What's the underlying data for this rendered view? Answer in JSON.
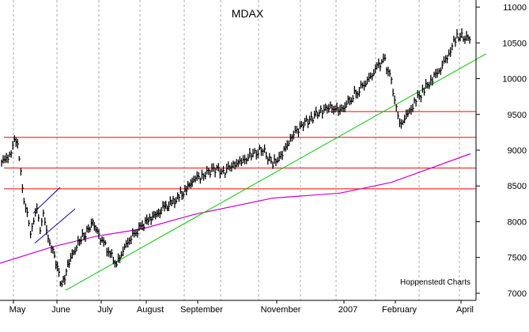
{
  "chart_data": {
    "type": "line",
    "subtype": "ohlc-bars",
    "title": "MDAX",
    "credit": "Hoppenstedt Charts",
    "ylim": [
      6900,
      11100
    ],
    "y_ticks": [
      7000,
      7500,
      8000,
      8500,
      9000,
      9500,
      10000,
      10500,
      11000
    ],
    "x_labels": [
      "May",
      "June",
      "July",
      "August",
      "September",
      "November",
      "2007",
      "February",
      "April"
    ],
    "grid": "vertical dashed",
    "colors": {
      "price": "#000000",
      "moving_average": "#cc00cc",
      "horizontal_levels": "#ff0000",
      "uptrend": "#00cc00",
      "channel": "#0000cc"
    },
    "horizontal_levels": [
      9180,
      8750,
      8460,
      9540
    ],
    "series": [
      {
        "name": "",
        "kind": "price",
        "points": [
          [
            "May",
            8820
          ],
          [
            "",
            8870
          ],
          [
            "",
            8900
          ],
          [
            "",
            9000
          ],
          [
            "",
            9180
          ],
          [
            "",
            9100
          ],
          [
            "",
            8700
          ],
          [
            "",
            8250
          ],
          [
            "",
            8100
          ],
          [
            "",
            7800
          ],
          [
            "",
            8000
          ],
          [
            "",
            8200
          ],
          [
            "",
            7900
          ],
          [
            "",
            8150
          ],
          [
            "",
            7900
          ],
          [
            "",
            7700
          ],
          [
            "June",
            7600
          ],
          [
            "",
            7350
          ],
          [
            "",
            7100
          ],
          [
            "",
            7300
          ],
          [
            "",
            7500
          ],
          [
            "",
            7600
          ],
          [
            "",
            7750
          ],
          [
            "",
            7800
          ],
          [
            "",
            7900
          ],
          [
            "",
            8000
          ],
          [
            "July",
            7850
          ],
          [
            "",
            7700
          ],
          [
            "",
            7550
          ],
          [
            "",
            7400
          ],
          [
            "",
            7600
          ],
          [
            "",
            7750
          ],
          [
            "",
            7850
          ],
          [
            "August",
            7950
          ],
          [
            "",
            8050
          ],
          [
            "",
            8100
          ],
          [
            "",
            8200
          ],
          [
            "",
            8250
          ],
          [
            "",
            8350
          ],
          [
            "",
            8450
          ],
          [
            "September",
            8600
          ],
          [
            "",
            8650
          ],
          [
            "",
            8750
          ],
          [
            "",
            8700
          ],
          [
            "",
            8800
          ],
          [
            "",
            8850
          ],
          [
            "",
            8950
          ],
          [
            "",
            9000
          ],
          [
            "November",
            8800
          ],
          [
            "",
            8950
          ],
          [
            "",
            9200
          ],
          [
            "",
            9350
          ],
          [
            "",
            9450
          ],
          [
            "",
            9550
          ],
          [
            "",
            9600
          ],
          [
            "2007",
            9550
          ],
          [
            "",
            9650
          ],
          [
            "",
            9750
          ],
          [
            "",
            9850
          ],
          [
            "",
            9950
          ],
          [
            "",
            10050
          ],
          [
            "",
            10200
          ],
          [
            "",
            10250
          ],
          [
            "February",
            9950
          ],
          [
            "",
            9350
          ],
          [
            "",
            9500
          ],
          [
            "",
            9700
          ],
          [
            "",
            9850
          ],
          [
            "",
            10000
          ],
          [
            "",
            10150
          ],
          [
            "",
            10350
          ],
          [
            "April",
            10600
          ],
          [
            "",
            10550
          ]
        ]
      },
      {
        "name": "",
        "kind": "moving-average",
        "points": [
          [
            "May",
            7420
          ],
          [
            "June",
            7650
          ],
          [
            "July",
            7800
          ],
          [
            "August",
            7900
          ],
          [
            "September",
            8100
          ],
          [
            "November",
            8330
          ],
          [
            "2007",
            8400
          ],
          [
            "February",
            8550
          ],
          [
            "April",
            8950
          ]
        ]
      }
    ],
    "trendlines": [
      {
        "name": "",
        "from": [
          "June",
          7040
        ],
        "to": [
          "April",
          10350
        ],
        "color": "#00cc00"
      },
      {
        "name": "",
        "from": [
          "May",
          7700
        ],
        "to": [
          "June",
          8180
        ],
        "color": "#0000cc"
      },
      {
        "name": "",
        "from": [
          "May",
          8120
        ],
        "to": [
          "June",
          8480
        ],
        "color": "#0000cc"
      }
    ]
  }
}
